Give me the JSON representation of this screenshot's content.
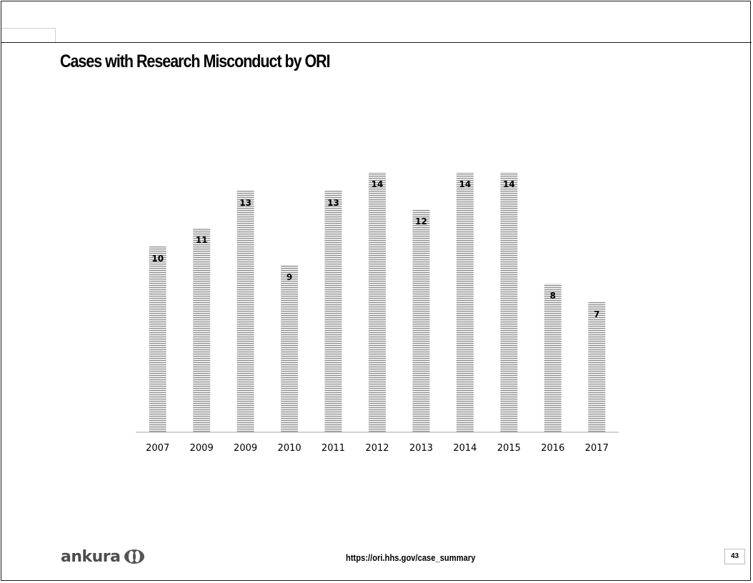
{
  "slide": {
    "title": "Cases with Research Misconduct by ORI",
    "source": "https://ori.hhs.gov/case_summary",
    "page_number": "43",
    "logo_text": "ankura"
  },
  "chart_data": {
    "type": "bar",
    "title": "",
    "xlabel": "",
    "ylabel": "",
    "categories": [
      "2007",
      "2009",
      "2009",
      "2010",
      "2011",
      "2012",
      "2013",
      "2014",
      "2015",
      "2016",
      "2017"
    ],
    "series": [
      {
        "values": [
          10,
          11,
          13,
          9,
          13,
          14,
          12,
          14,
          14,
          8,
          7
        ]
      }
    ],
    "ylim": [
      0,
      14
    ],
    "grid": false,
    "legend": "none",
    "bar_pattern": "horizontal-stripes",
    "colors": {
      "bar_stripe": "#8c8c8c",
      "bar_base": "#f2f2f2",
      "axis": "#a6a6a6"
    }
  }
}
